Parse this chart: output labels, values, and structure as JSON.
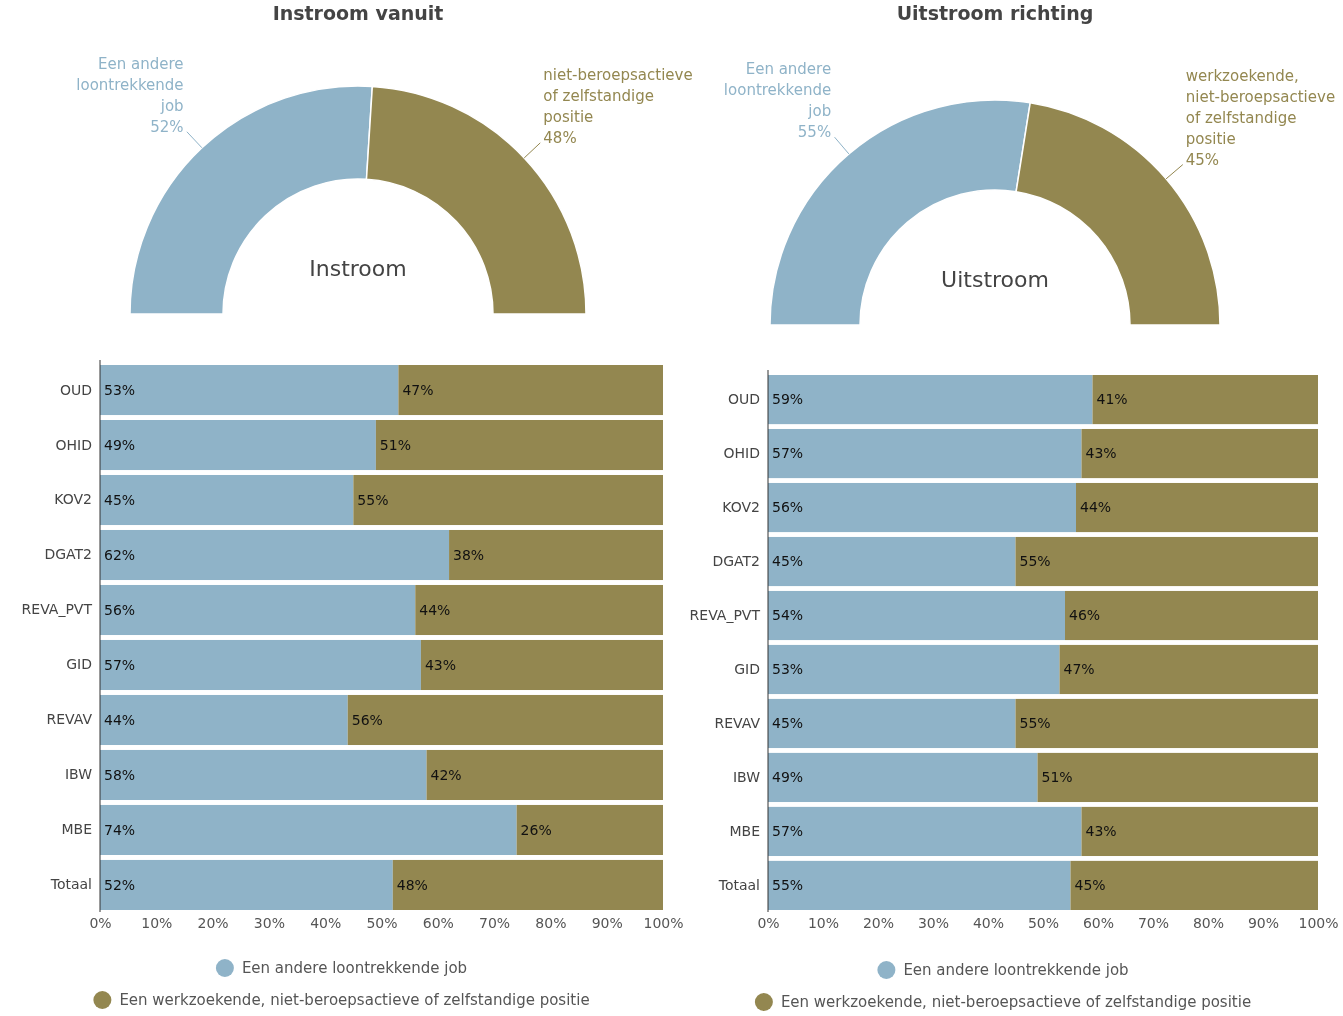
{
  "chart_data": [
    {
      "type": "donut",
      "title": "Instroom vanuit",
      "annotations": [
        "Instroom"
      ],
      "categories": [
        "Een andere loontrekkende job",
        "niet-beroepsactieve of zelfstandige positie"
      ],
      "values": [
        52,
        48
      ],
      "value_labels": [
        "52%",
        "48%"
      ],
      "colors": [
        "#8fb3c8",
        "#938750"
      ]
    },
    {
      "type": "donut",
      "title": "Uitstroom richting",
      "annotations": [
        "Uitstroom"
      ],
      "categories": [
        "Een andere loontrekkende job",
        "werkzoekende, niet-beroepsactieve of zelfstandige positie"
      ],
      "values": [
        55,
        45
      ],
      "value_labels": [
        "55%",
        "45%"
      ],
      "colors": [
        "#8fb3c8",
        "#938750"
      ]
    },
    {
      "type": "bar",
      "orientation": "horizontal",
      "stacked": true,
      "legend": "bottom",
      "categories": [
        "OUD",
        "OHID",
        "KOV2",
        "DGAT2",
        "REVA_PVT",
        "GID",
        "REVAV",
        "IBW",
        "MBE",
        "Totaal"
      ],
      "xlim": [
        0,
        100
      ],
      "xticks": [
        {
          "value": 0,
          "label": "0%"
        },
        {
          "value": 10,
          "label": "10%"
        },
        {
          "value": 20,
          "label": "20%"
        },
        {
          "value": 30,
          "label": "30%"
        },
        {
          "value": 40,
          "label": "40%"
        },
        {
          "value": 50,
          "label": "50%"
        },
        {
          "value": 60,
          "label": "60%"
        },
        {
          "value": 70,
          "label": "70%"
        },
        {
          "value": 80,
          "label": "80%"
        },
        {
          "value": 90,
          "label": "90%"
        },
        {
          "value": 100,
          "label": "100%"
        }
      ],
      "series": [
        {
          "name": "Een andere loontrekkende job",
          "color": "#8fb3c8",
          "values": [
            53,
            49,
            45,
            62,
            56,
            57,
            44,
            58,
            74,
            52
          ],
          "value_labels": [
            "53%",
            "49%",
            "45%",
            "62%",
            "56%",
            "57%",
            "44%",
            "58%",
            "74%",
            "52%"
          ]
        },
        {
          "name": "Een werkzoekende, niet-beroepsactieve of zelfstandige positie",
          "color": "#938750",
          "values": [
            47,
            51,
            55,
            38,
            44,
            43,
            56,
            42,
            26,
            48
          ],
          "value_labels": [
            "47%",
            "51%",
            "55%",
            "38%",
            "44%",
            "43%",
            "56%",
            "42%",
            "26%",
            "48%"
          ]
        }
      ]
    },
    {
      "type": "bar",
      "orientation": "horizontal",
      "stacked": true,
      "legend": "bottom",
      "categories": [
        "OUD",
        "OHID",
        "KOV2",
        "DGAT2",
        "REVA_PVT",
        "GID",
        "REVAV",
        "IBW",
        "MBE",
        "Totaal"
      ],
      "xlim": [
        0,
        100
      ],
      "xticks": [
        {
          "value": 0,
          "label": "0%"
        },
        {
          "value": 10,
          "label": "10%"
        },
        {
          "value": 20,
          "label": "20%"
        },
        {
          "value": 30,
          "label": "30%"
        },
        {
          "value": 40,
          "label": "40%"
        },
        {
          "value": 50,
          "label": "50%"
        },
        {
          "value": 60,
          "label": "60%"
        },
        {
          "value": 70,
          "label": "70%"
        },
        {
          "value": 80,
          "label": "80%"
        },
        {
          "value": 90,
          "label": "90%"
        },
        {
          "value": 100,
          "label": "100%"
        }
      ],
      "series": [
        {
          "name": "Een andere loontrekkende job",
          "color": "#8fb3c8",
          "values": [
            59,
            57,
            56,
            45,
            54,
            53,
            45,
            49,
            57,
            55
          ],
          "value_labels": [
            "59%",
            "57%",
            "56%",
            "45%",
            "54%",
            "53%",
            "45%",
            "49%",
            "57%",
            "55%"
          ]
        },
        {
          "name": "Een werkzoekende, niet-beroepsactieve of zelfstandige positie",
          "color": "#938750",
          "values": [
            41,
            43,
            44,
            55,
            46,
            47,
            55,
            51,
            43,
            45
          ],
          "value_labels": [
            "41%",
            "43%",
            "44%",
            "55%",
            "46%",
            "47%",
            "55%",
            "51%",
            "43%",
            "45%"
          ]
        }
      ]
    }
  ]
}
